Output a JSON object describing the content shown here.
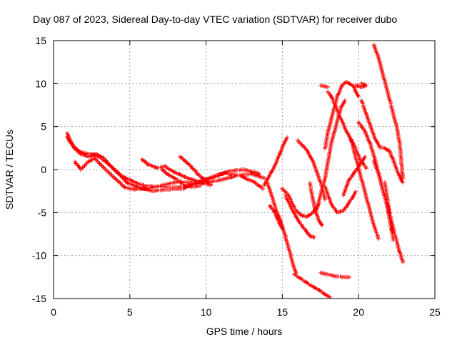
{
  "chart_data": {
    "type": "scatter",
    "title": "Day 087 of 2023, Sidereal Day-to-day VTEC variation (SDTVAR) for receiver dubo",
    "xlabel": "GPS time / hours",
    "ylabel": "SDTVAR / TECUs",
    "xlim": [
      0,
      25
    ],
    "ylim": [
      -15,
      15
    ],
    "x_ticks": [
      0,
      5,
      10,
      15,
      20,
      25
    ],
    "x_tick_labels": [
      "0",
      "5",
      "10",
      "15",
      "20",
      "25"
    ],
    "y_ticks": [
      -15,
      -10,
      -5,
      0,
      5,
      10,
      15
    ],
    "y_tick_labels": [
      "-15",
      "-10",
      "-5",
      "0",
      "5",
      "10",
      "15"
    ],
    "grid": true,
    "marker": "+",
    "color": "#ff0000",
    "series": [
      {
        "name": "track-1",
        "points": [
          [
            0.9,
            4.2
          ],
          [
            1.2,
            3.0
          ],
          [
            1.6,
            2.2
          ],
          [
            2.0,
            1.9
          ],
          [
            2.5,
            1.8
          ],
          [
            3.0,
            1.5
          ],
          [
            3.5,
            0.8
          ],
          [
            4.0,
            0.0
          ],
          [
            4.5,
            -0.8
          ],
          [
            5.0,
            -1.2
          ],
          [
            5.5,
            -1.6
          ],
          [
            6.0,
            -1.9
          ],
          [
            7.0,
            -2.0
          ],
          [
            8.0,
            -2.1
          ],
          [
            9.0,
            -1.8
          ],
          [
            10.0,
            -1.5
          ],
          [
            11.0,
            -1.2
          ],
          [
            12.0,
            -0.7
          ],
          [
            13.0,
            -0.5
          ],
          [
            13.8,
            -1.0
          ]
        ]
      },
      {
        "name": "track-2",
        "points": [
          [
            0.9,
            3.8
          ],
          [
            1.3,
            2.6
          ],
          [
            1.8,
            1.8
          ],
          [
            2.3,
            1.5
          ],
          [
            2.8,
            1.8
          ],
          [
            3.3,
            1.3
          ],
          [
            3.8,
            0.3
          ],
          [
            4.3,
            -0.5
          ],
          [
            4.8,
            -1.5
          ],
          [
            5.5,
            -2.0
          ],
          [
            6.5,
            -2.5
          ],
          [
            7.5,
            -2.3
          ],
          [
            8.5,
            -2.2
          ],
          [
            9.5,
            -1.5
          ],
          [
            10.5,
            -0.8
          ],
          [
            11.5,
            -0.2
          ],
          [
            12.5,
            0.0
          ],
          [
            13.5,
            -0.5
          ]
        ]
      },
      {
        "name": "track-3",
        "points": [
          [
            1.4,
            0.9
          ],
          [
            1.8,
            0.0
          ],
          [
            2.2,
            0.8
          ],
          [
            2.7,
            1.3
          ],
          [
            3.2,
            0.4
          ],
          [
            3.7,
            -0.5
          ],
          [
            4.2,
            -1.3
          ],
          [
            4.7,
            -2.1
          ],
          [
            5.3,
            -2.3
          ],
          [
            6.2,
            -2.2
          ],
          [
            7.2,
            -1.8
          ],
          [
            8.2,
            -1.4
          ],
          [
            9.2,
            -1.6
          ],
          [
            10.2,
            -1.1
          ],
          [
            11.2,
            -0.4
          ],
          [
            12.2,
            -0.7
          ],
          [
            13.2,
            -1.5
          ],
          [
            13.7,
            -2.2
          ]
        ]
      },
      {
        "name": "track-4",
        "points": [
          [
            5.8,
            1.2
          ],
          [
            6.2,
            0.6
          ],
          [
            6.8,
            0.2
          ],
          [
            7.3,
            0.4
          ],
          [
            7.8,
            -0.2
          ],
          [
            8.3,
            -0.6
          ],
          [
            8.8,
            -1.0
          ],
          [
            9.3,
            -1.3
          ],
          [
            9.8,
            -1.6
          ],
          [
            10.3,
            -1.8
          ]
        ]
      },
      {
        "name": "track-5",
        "points": [
          [
            8.3,
            1.5
          ],
          [
            8.7,
            0.9
          ],
          [
            9.1,
            0.2
          ],
          [
            9.5,
            -0.6
          ],
          [
            9.9,
            -1.2
          ],
          [
            10.3,
            -1.7
          ]
        ]
      },
      {
        "name": "track-6",
        "points": [
          [
            7.1,
            0.0
          ],
          [
            7.6,
            -0.7
          ],
          [
            8.1,
            -1.2
          ],
          [
            8.6,
            -1.8
          ],
          [
            9.1,
            -2.0
          ],
          [
            9.6,
            -1.9
          ]
        ]
      },
      {
        "name": "track-7",
        "points": [
          [
            14.2,
            -4.2
          ],
          [
            14.5,
            -5.0
          ],
          [
            14.8,
            -6.2
          ],
          [
            15.1,
            -7.2
          ],
          [
            15.4,
            -9.0
          ],
          [
            15.7,
            -11.0
          ],
          [
            15.9,
            -12.0
          ]
        ]
      },
      {
        "name": "track-8",
        "points": [
          [
            14.0,
            -1.5
          ],
          [
            14.3,
            -3.0
          ],
          [
            14.6,
            -4.8
          ],
          [
            14.9,
            -6.0
          ],
          [
            15.2,
            -7.7
          ]
        ]
      },
      {
        "name": "track-9",
        "points": [
          [
            13.8,
            -1.8
          ],
          [
            14.2,
            -0.6
          ],
          [
            14.6,
            0.8
          ],
          [
            15.0,
            2.6
          ],
          [
            15.3,
            3.7
          ]
        ]
      },
      {
        "name": "track-10",
        "points": [
          [
            15.0,
            -2.2
          ],
          [
            15.4,
            -3.0
          ],
          [
            15.8,
            -4.5
          ],
          [
            16.2,
            -5.3
          ],
          [
            16.6,
            -5.5
          ],
          [
            17.0,
            -5.0
          ],
          [
            17.4,
            -4.0
          ]
        ]
      },
      {
        "name": "track-11",
        "points": [
          [
            15.2,
            -3.0
          ],
          [
            15.6,
            -4.5
          ],
          [
            16.0,
            -5.8
          ],
          [
            16.4,
            -6.8
          ],
          [
            16.8,
            -7.7
          ],
          [
            17.1,
            -7.9
          ]
        ]
      },
      {
        "name": "track-12",
        "points": [
          [
            16.0,
            3.4
          ],
          [
            16.5,
            2.5
          ],
          [
            17.0,
            1.0
          ],
          [
            17.3,
            -0.5
          ],
          [
            17.6,
            -2.0
          ],
          [
            17.8,
            -3.5
          ]
        ]
      },
      {
        "name": "track-13",
        "points": [
          [
            16.8,
            -1.6
          ],
          [
            17.0,
            -3.5
          ],
          [
            17.2,
            -5.0
          ],
          [
            17.4,
            -6.0
          ],
          [
            17.6,
            -6.5
          ]
        ]
      },
      {
        "name": "track-14",
        "points": [
          [
            17.2,
            -5.0
          ],
          [
            17.5,
            -3.0
          ],
          [
            17.8,
            -1.0
          ],
          [
            18.0,
            1.0
          ],
          [
            18.2,
            3.0
          ],
          [
            18.5,
            5.0
          ],
          [
            18.8,
            7.0
          ],
          [
            19.1,
            8.0
          ]
        ]
      },
      {
        "name": "track-15",
        "points": [
          [
            17.8,
            2.5
          ],
          [
            18.0,
            4.5
          ],
          [
            18.3,
            6.5
          ],
          [
            18.6,
            8.5
          ],
          [
            18.9,
            9.8
          ],
          [
            19.2,
            10.2
          ],
          [
            19.6,
            9.8
          ],
          [
            20.0,
            8.5
          ]
        ]
      },
      {
        "name": "track-16",
        "points": [
          [
            18.0,
            9.0
          ],
          [
            18.3,
            8.2
          ],
          [
            18.7,
            6.5
          ],
          [
            19.2,
            4.5
          ],
          [
            19.7,
            2.8
          ],
          [
            20.1,
            1.2
          ],
          [
            20.5,
            0.2
          ]
        ]
      },
      {
        "name": "track-17",
        "points": [
          [
            17.8,
            -2.0
          ],
          [
            18.2,
            -4.0
          ],
          [
            18.6,
            -5.0
          ],
          [
            19.0,
            -4.8
          ],
          [
            19.4,
            -3.8
          ],
          [
            19.8,
            -2.6
          ]
        ]
      },
      {
        "name": "track-18",
        "points": [
          [
            19.0,
            -3.0
          ],
          [
            19.3,
            -1.5
          ],
          [
            19.6,
            -0.6
          ],
          [
            20.0,
            0.3
          ],
          [
            20.4,
            1.5
          ]
        ]
      },
      {
        "name": "track-19",
        "points": [
          [
            15.8,
            -12.2
          ],
          [
            16.3,
            -12.8
          ],
          [
            16.9,
            -13.5
          ],
          [
            17.4,
            -14.0
          ],
          [
            17.8,
            -14.5
          ],
          [
            18.1,
            -14.8
          ]
        ]
      },
      {
        "name": "track-20",
        "points": [
          [
            17.5,
            -12.0
          ],
          [
            18.0,
            -12.2
          ],
          [
            18.5,
            -12.4
          ],
          [
            19.0,
            -12.5
          ],
          [
            19.4,
            -12.5
          ]
        ]
      },
      {
        "name": "track-21",
        "points": [
          [
            19.8,
            9.8
          ],
          [
            20.2,
            9.6
          ],
          [
            20.5,
            9.8
          ],
          [
            20.2,
            10.0
          ]
        ]
      },
      {
        "name": "track-22",
        "points": [
          [
            20.2,
            8.0
          ],
          [
            20.5,
            6.5
          ],
          [
            20.8,
            5.0
          ],
          [
            21.1,
            3.5
          ],
          [
            21.4,
            2.6
          ],
          [
            21.7,
            2.5
          ],
          [
            22.0,
            2.2
          ],
          [
            22.3,
            1.0
          ],
          [
            22.6,
            -0.5
          ],
          [
            22.9,
            -1.5
          ]
        ]
      },
      {
        "name": "track-23",
        "points": [
          [
            20.0,
            5.5
          ],
          [
            20.4,
            4.5
          ],
          [
            20.8,
            2.8
          ],
          [
            21.1,
            1.0
          ],
          [
            21.4,
            -1.0
          ],
          [
            21.7,
            -3.0
          ],
          [
            22.0,
            -5.0
          ],
          [
            22.3,
            -7.0
          ],
          [
            22.6,
            -9.0
          ],
          [
            22.9,
            -10.8
          ]
        ]
      },
      {
        "name": "track-24",
        "points": [
          [
            19.5,
            3.5
          ],
          [
            19.8,
            1.5
          ],
          [
            20.1,
            -0.5
          ],
          [
            20.4,
            -2.5
          ],
          [
            20.7,
            -4.5
          ],
          [
            21.0,
            -6.5
          ],
          [
            21.3,
            -8.0
          ]
        ]
      },
      {
        "name": "track-25",
        "points": [
          [
            21.0,
            1.0
          ],
          [
            21.3,
            -0.5
          ],
          [
            21.6,
            -2.5
          ],
          [
            21.9,
            -4.5
          ],
          [
            22.1,
            -6.5
          ],
          [
            22.3,
            -8.2
          ]
        ]
      },
      {
        "name": "track-26",
        "points": [
          [
            21.0,
            14.5
          ],
          [
            21.3,
            13.0
          ],
          [
            21.6,
            11.0
          ],
          [
            21.9,
            9.0
          ],
          [
            22.2,
            7.0
          ],
          [
            22.5,
            5.0
          ],
          [
            22.7,
            3.0
          ],
          [
            22.8,
            1.0
          ],
          [
            22.9,
            -1.0
          ]
        ]
      },
      {
        "name": "track-27",
        "points": [
          [
            17.5,
            9.8
          ],
          [
            18.0,
            9.6
          ]
        ]
      },
      {
        "name": "track-28",
        "points": [
          [
            21.7,
            -1.5
          ],
          [
            21.9,
            -3.5
          ],
          [
            22.1,
            -5.8
          ],
          [
            22.2,
            -7.0
          ]
        ]
      }
    ]
  }
}
